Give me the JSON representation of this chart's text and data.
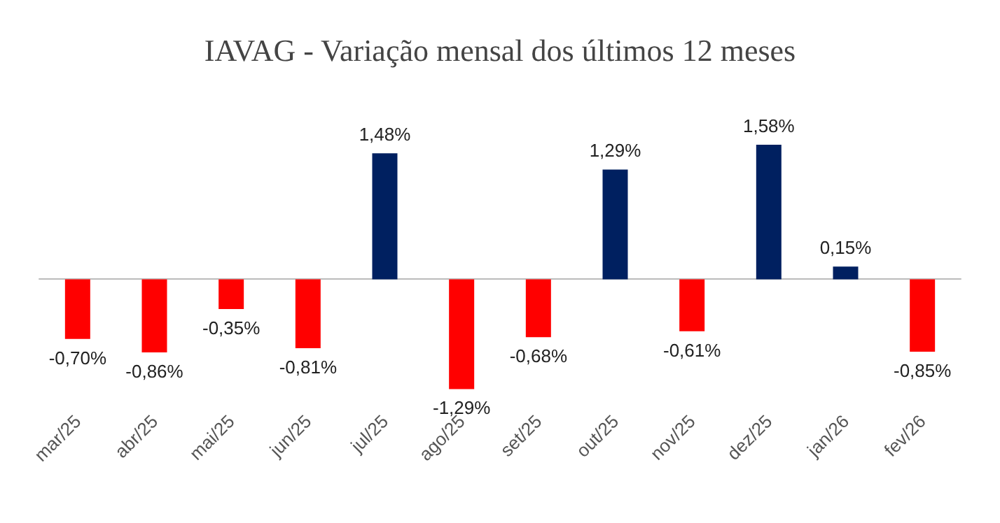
{
  "chart_data": {
    "type": "bar",
    "title": "IAVAG - Variação mensal dos últimos 12 meses",
    "categories": [
      "mar/25",
      "abr/25",
      "mai/25",
      "jun/25",
      "jul/25",
      "ago/25",
      "set/25",
      "out/25",
      "nov/25",
      "dez/25",
      "jan/26",
      "fev/26"
    ],
    "values": [
      -0.7,
      -0.86,
      -0.35,
      -0.81,
      1.48,
      -1.29,
      -0.68,
      1.29,
      -0.61,
      1.58,
      0.15,
      -0.85
    ],
    "colors": [
      "#ff0000",
      "#ff0000",
      "#ff0000",
      "#ff0000",
      "#002060",
      "#ff0000",
      "#ff0000",
      "#002060",
      "#ff0000",
      "#002060",
      "#002060",
      "#ff0000"
    ],
    "value_labels": [
      "-0,70%",
      "-0,86%",
      "-0,35%",
      "-0,81%",
      "1,48%",
      "-1,29%",
      "-0,68%",
      "1,29%",
      "-0,61%",
      "1,58%",
      "0,15%",
      "-0,85%"
    ]
  }
}
